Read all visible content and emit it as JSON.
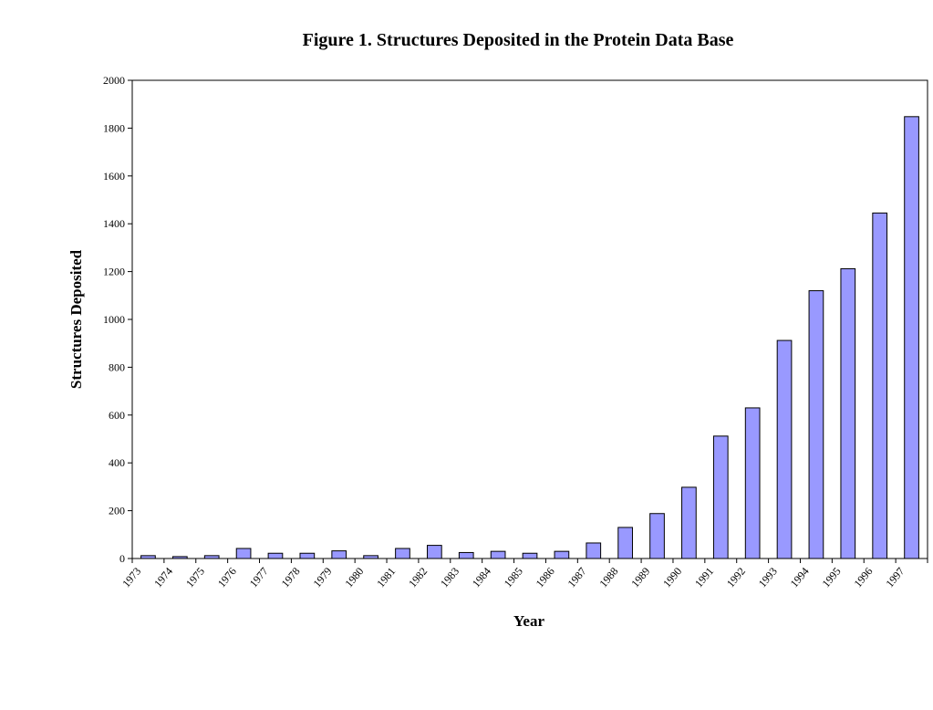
{
  "chart_data": {
    "type": "bar",
    "title": "Figure 1.  Structures Deposited in the Protein Data Base",
    "xlabel": "Year",
    "ylabel": "Structures Deposited",
    "ylim": [
      0,
      2000
    ],
    "yticks": [
      0,
      200,
      400,
      600,
      800,
      1000,
      1200,
      1400,
      1600,
      1800,
      2000
    ],
    "categories": [
      "1973",
      "1974",
      "1975",
      "1976",
      "1977",
      "1978",
      "1979",
      "1980",
      "1981",
      "1982",
      "1983",
      "1984",
      "1985",
      "1986",
      "1987",
      "1988",
      "1989",
      "1990",
      "1991",
      "1992",
      "1993",
      "1994",
      "1995",
      "1996",
      "1997"
    ],
    "values": [
      12,
      8,
      12,
      42,
      22,
      22,
      32,
      12,
      42,
      55,
      25,
      30,
      22,
      30,
      65,
      130,
      188,
      298,
      512,
      630,
      912,
      1120,
      1212,
      1445,
      1848
    ],
    "bar_color": "#9999ff",
    "grid": false
  }
}
